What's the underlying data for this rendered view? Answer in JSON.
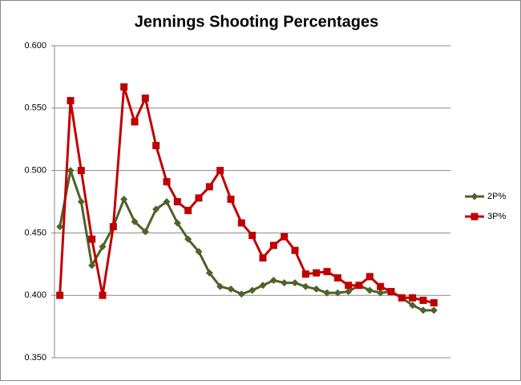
{
  "chart_data": {
    "type": "line",
    "title": "Jennings Shooting Percentages",
    "categories": [
      null,
      null,
      null,
      null,
      null,
      null,
      null,
      null,
      null,
      null,
      null,
      null,
      null,
      null,
      null,
      null,
      null,
      null,
      null,
      null,
      null,
      null,
      null,
      null,
      null,
      null,
      null,
      null,
      null,
      null,
      null,
      null,
      null,
      null,
      null,
      null
    ],
    "series": [
      {
        "name": "2P%",
        "color": "#4f6228",
        "marker": "diamond",
        "values": [
          0.455,
          0.5,
          0.475,
          0.424,
          0.439,
          0.455,
          0.477,
          0.459,
          0.451,
          0.469,
          0.475,
          0.458,
          0.445,
          0.435,
          0.418,
          0.407,
          0.405,
          0.401,
          0.404,
          0.408,
          0.412,
          0.41,
          0.41,
          0.407,
          0.405,
          0.402,
          0.402,
          0.403,
          0.408,
          0.404,
          0.402,
          0.403,
          0.398,
          0.392,
          0.388,
          0.388
        ]
      },
      {
        "name": "3P%",
        "color": "#c00000",
        "marker": "square",
        "values": [
          0.4,
          0.556,
          0.5,
          0.445,
          0.4,
          0.455,
          0.567,
          0.539,
          0.558,
          0.52,
          0.491,
          0.475,
          0.468,
          0.478,
          0.487,
          0.5,
          0.477,
          0.458,
          0.448,
          0.43,
          0.44,
          0.447,
          0.436,
          0.417,
          0.418,
          0.419,
          0.414,
          0.408,
          0.408,
          0.415,
          0.407,
          0.403,
          0.398,
          0.398,
          0.396,
          0.394
        ]
      }
    ],
    "ylim": [
      0.35,
      0.6
    ],
    "yticks": [
      {
        "value": 0.35,
        "label": "0.350"
      },
      {
        "value": 0.4,
        "label": "0.400"
      },
      {
        "value": 0.45,
        "label": "0.450"
      },
      {
        "value": 0.5,
        "label": "0.500"
      },
      {
        "value": 0.55,
        "label": "0.550"
      },
      {
        "value": 0.6,
        "label": "0.600"
      }
    ],
    "grid": true,
    "legend": "right"
  }
}
